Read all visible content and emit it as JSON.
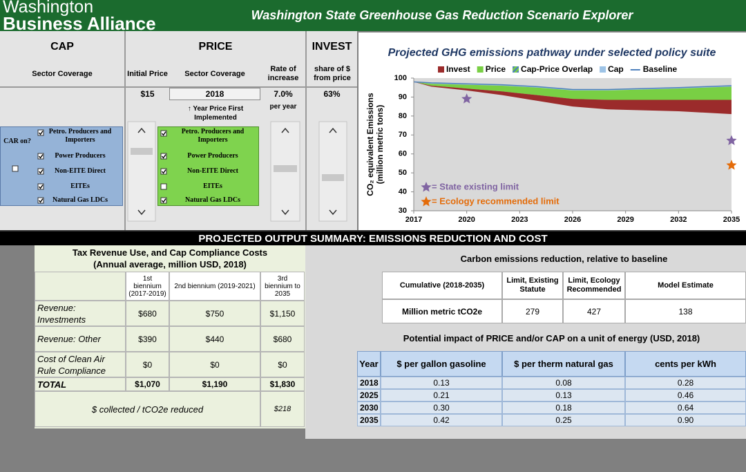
{
  "header": {
    "logo_line1": "Washington",
    "logo_line2": "Business Alliance",
    "title": "Washington State Greenhouse Gas Reduction Scenario Explorer"
  },
  "controls": {
    "cap": {
      "title": "CAP",
      "sector_coverage": "Sector Coverage",
      "car_label": "CAR on?",
      "car_on": false,
      "sectors": [
        "Petro. Producers and Importers",
        "Power Producers",
        "Non-EITE Direct",
        "EITEs",
        "Natural Gas LDCs"
      ],
      "checked": [
        true,
        true,
        true,
        true,
        true
      ]
    },
    "price": {
      "title": "PRICE",
      "initial_price_label": "Initial Price",
      "sector_coverage": "Sector Coverage",
      "rate_label": "Rate of increase",
      "initial_price": "$15",
      "first_year": "2018",
      "first_year_note": "↑ Year Price First Implemented",
      "rate": "7.0%",
      "rate_unit": "per year",
      "sectors": [
        "Petro. Producers and Importers",
        "Power Producers",
        "Non-EITE Direct",
        "EITEs",
        "Natural Gas LDCs"
      ],
      "checked": [
        true,
        true,
        true,
        false,
        true
      ]
    },
    "invest": {
      "title": "INVEST",
      "share_label": "share of $ from price",
      "share": "63%"
    }
  },
  "chart_data": {
    "type": "area",
    "title": "Projected GHG emissions pathway under selected policy suite",
    "ylabel_lines": [
      "CO₂ equivalent Emissions",
      "(million metric tons)"
    ],
    "x": [
      2017,
      2018,
      2020,
      2022,
      2023,
      2024,
      2026,
      2028,
      2030,
      2032,
      2035
    ],
    "xlim": [
      2017,
      2035
    ],
    "xticks": [
      2017,
      2020,
      2023,
      2026,
      2029,
      2032,
      2035
    ],
    "ylim": [
      30,
      100
    ],
    "yticks": [
      30,
      40,
      50,
      60,
      70,
      80,
      90,
      100
    ],
    "baseline": {
      "name": "Baseline",
      "color": "#4f81bd",
      "values": [
        98,
        97.5,
        97,
        96.5,
        96,
        95.5,
        94,
        94,
        94.5,
        95,
        96
      ]
    },
    "series": [
      {
        "name": "Invest",
        "color": "#9b2b2b",
        "values": [
          0,
          0.5,
          1,
          2,
          2.5,
          3,
          4,
          5,
          5.5,
          6,
          7.5
        ]
      },
      {
        "name": "Price",
        "color": "#79cf44",
        "values": [
          0,
          1,
          2,
          3,
          3.5,
          4,
          4.5,
          5,
          5.5,
          6,
          7
        ]
      },
      {
        "name": "Cap-Price Overlap",
        "color": "#79cf44",
        "hatch_color": "#4f81bd",
        "values": [
          0,
          0,
          0,
          0,
          0,
          0,
          0,
          0,
          0,
          0,
          0
        ]
      },
      {
        "name": "Cap",
        "color": "#9dc3e6",
        "values": [
          0,
          0.5,
          0.5,
          0.5,
          0.5,
          0.5,
          0.5,
          0.5,
          0.5,
          0.5,
          0.5
        ]
      }
    ],
    "limits": [
      {
        "name": "= State existing limit",
        "color": "#8064a2",
        "x": [
          2020,
          2035
        ],
        "values": [
          89,
          67
        ]
      },
      {
        "name": "= Ecology recommended limit",
        "color": "#e46c0a",
        "x": [
          2035
        ],
        "values": [
          54
        ]
      }
    ]
  },
  "summary": {
    "banner": "PROJECTED OUTPUT SUMMARY: EMISSIONS REDUCTION AND COST",
    "tax": {
      "title_lines": [
        "Tax Revenue Use, and Cap Compliance Costs",
        "(Annual average, million USD, 2018)"
      ],
      "headers": [
        "1st biennium (2017-2019)",
        "2nd biennium (2019-2021)",
        "3rd biennium to 2035"
      ],
      "rows": [
        [
          "Revenue: Investments",
          "$680",
          "$750",
          "$1,150"
        ],
        [
          "Revenue: Other",
          "$390",
          "$440",
          "$680"
        ],
        [
          "Cost of Clean Air Rule Compliance",
          "$0",
          "$0",
          "$0"
        ],
        [
          "TOTAL",
          "$1,070",
          "$1,190",
          "$1,830"
        ]
      ],
      "footer": [
        "$ collected / tCO2e reduced",
        "$218"
      ]
    },
    "reduction": {
      "title": "Carbon emissions reduction, relative to baseline",
      "headers": [
        "Cumulative (2018-2035)",
        "Limit, Existing Statute",
        "Limit, Ecology Recommended",
        "Model Estimate"
      ],
      "row": [
        "Million metric tCO2e",
        "279",
        "427",
        "138"
      ]
    },
    "energy": {
      "title": "Potential impact of PRICE and/or CAP on a unit of energy (USD, 2018)",
      "headers": [
        "Year",
        "$ per gallon gasoline",
        "$ per therm natural gas",
        "cents per kWh"
      ],
      "rows": [
        [
          "2018",
          "0.13",
          "0.08",
          "0.28"
        ],
        [
          "2025",
          "0.21",
          "0.13",
          "0.46"
        ],
        [
          "2030",
          "0.30",
          "0.18",
          "0.64"
        ],
        [
          "2035",
          "0.42",
          "0.25",
          "0.90"
        ]
      ]
    }
  }
}
